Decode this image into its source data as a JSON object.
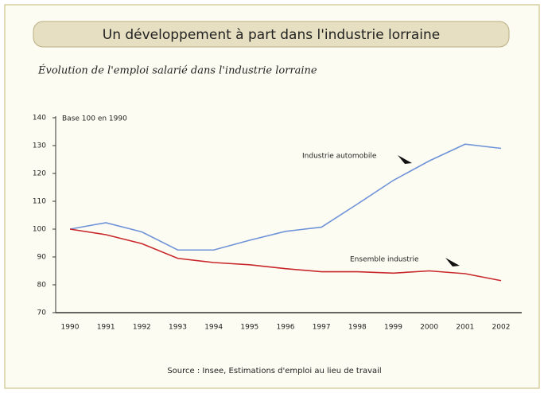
{
  "chart_data": {
    "type": "line",
    "title": "Un développement à part dans l'industrie lorraine",
    "subtitle": "Évolution de l'emploi salarié dans l'industrie lorraine",
    "y_axis_label": "Base 100 en 1990",
    "source": "Source : Insee, Estimations d'emploi au lieu de travail",
    "categories": [
      "1990",
      "1991",
      "1992",
      "1993",
      "1994",
      "1995",
      "1996",
      "1997",
      "1998",
      "1999",
      "2000",
      "2001",
      "2002"
    ],
    "series": [
      {
        "name": "Industrie automobile",
        "color": "#6f93d8",
        "values": [
          100,
          102.3,
          99,
          92.5,
          92.5,
          96,
          99.2,
          100.7,
          109,
          117.5,
          124.5,
          130.5,
          129
        ]
      },
      {
        "name": "Ensemble industrie",
        "color": "#c8282c",
        "values": [
          100,
          98,
          94.8,
          89.5,
          88,
          87.2,
          85.8,
          84.7,
          84.7,
          84.2,
          85,
          84,
          81.5
        ]
      }
    ],
    "ylim": [
      70,
      140
    ],
    "yticks": [
      70,
      80,
      90,
      100,
      110,
      120,
      130,
      140
    ],
    "grid": false
  }
}
